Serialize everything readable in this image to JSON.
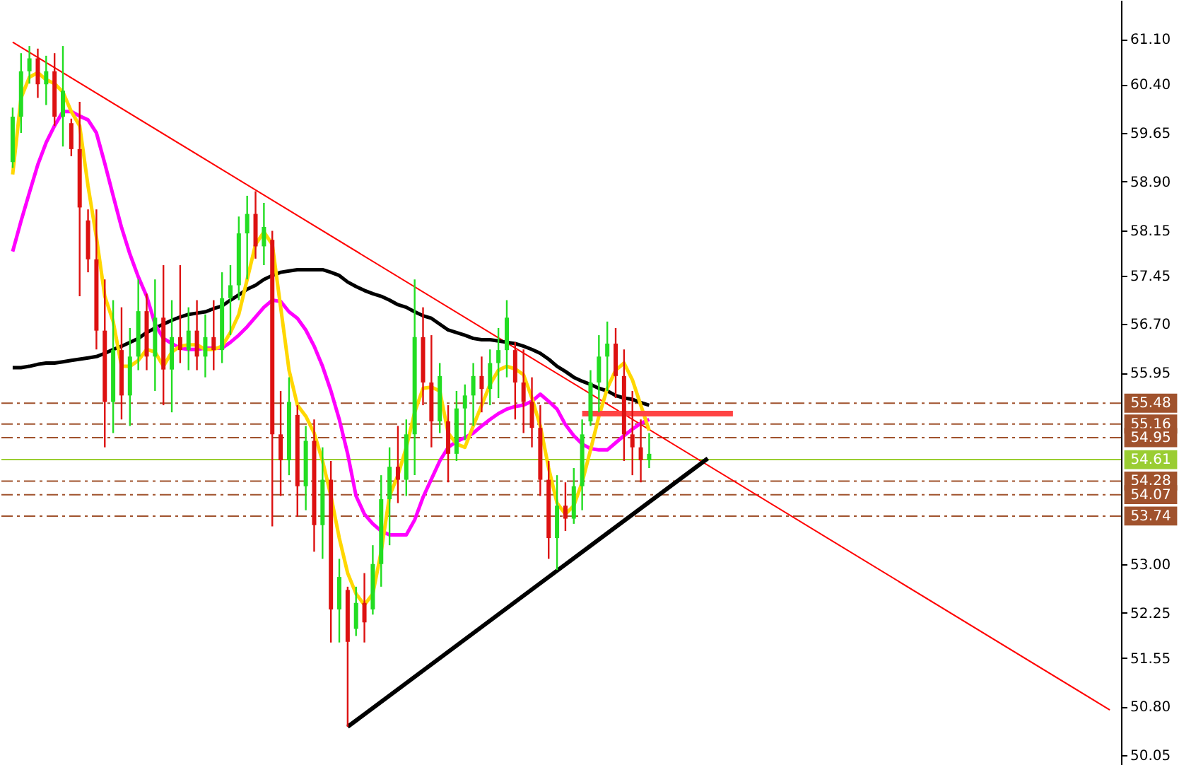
{
  "chart_data": {
    "type": "candlestick",
    "categories": [
      null,
      null,
      null,
      null,
      null,
      null,
      null,
      null,
      null,
      null,
      null,
      null,
      null,
      null,
      null,
      null,
      null,
      null,
      null,
      null,
      null,
      null,
      null,
      null,
      null,
      null,
      null,
      null,
      null,
      null,
      null,
      null,
      null,
      null,
      null,
      null,
      null,
      null,
      null,
      null,
      null,
      null,
      null,
      null,
      null,
      null,
      null,
      null,
      null,
      null,
      null,
      null,
      null,
      null,
      null,
      null,
      null,
      null,
      null,
      null,
      null,
      null,
      null,
      null,
      null,
      null,
      null,
      null,
      null,
      null,
      null,
      null,
      null,
      null,
      null,
      null,
      null,
      null,
      null,
      null,
      null,
      null,
      null,
      null,
      null,
      null,
      null,
      null,
      null,
      null,
      null,
      null,
      null,
      null,
      null,
      null,
      null,
      null,
      null,
      null,
      null,
      null,
      null,
      null,
      null,
      null,
      null,
      null,
      null,
      null,
      null,
      null,
      null,
      null,
      null,
      null,
      null,
      null,
      null,
      null,
      null,
      null,
      null,
      null,
      null,
      null,
      null,
      null,
      null,
      null,
      null,
      null
    ],
    "ohlc": [
      [
        59.2,
        60.04,
        59.11,
        59.9
      ],
      [
        59.9,
        60.88,
        59.65,
        60.6
      ],
      [
        60.6,
        60.99,
        60.41,
        60.8
      ],
      [
        60.8,
        60.95,
        60.19,
        60.4
      ],
      [
        60.4,
        60.84,
        60.08,
        60.6
      ],
      [
        60.6,
        60.88,
        59.76,
        59.9
      ],
      [
        59.9,
        60.99,
        59.44,
        60.3
      ],
      [
        59.8,
        59.87,
        59.29,
        59.4
      ],
      [
        59.4,
        60.13,
        57.13,
        58.5
      ],
      [
        58.3,
        58.47,
        57.5,
        57.7
      ],
      [
        57.7,
        58.47,
        56.31,
        56.6
      ],
      [
        56.6,
        57.39,
        54.8,
        55.5
      ],
      [
        55.5,
        57.07,
        55.02,
        56.3
      ],
      [
        56.3,
        56.96,
        55.23,
        55.6
      ],
      [
        55.6,
        56.64,
        55.13,
        56.2
      ],
      [
        56.2,
        57.39,
        55.99,
        56.9
      ],
      [
        56.9,
        57.17,
        55.99,
        56.2
      ],
      [
        56.2,
        57.39,
        55.67,
        56.8
      ],
      [
        56.8,
        57.61,
        55.45,
        56.0
      ],
      [
        56.0,
        57.07,
        55.34,
        56.5
      ],
      [
        56.5,
        57.61,
        56.1,
        56.3
      ],
      [
        56.3,
        56.96,
        55.99,
        56.6
      ],
      [
        56.6,
        57.07,
        55.99,
        56.2
      ],
      [
        56.2,
        56.85,
        55.88,
        56.5
      ],
      [
        56.5,
        57.07,
        55.99,
        56.3
      ],
      [
        56.3,
        57.5,
        56.1,
        57.1
      ],
      [
        57.1,
        57.61,
        56.53,
        57.3
      ],
      [
        57.3,
        58.36,
        57.07,
        58.1
      ],
      [
        58.1,
        58.68,
        57.39,
        58.4
      ],
      [
        58.4,
        58.75,
        57.71,
        57.9
      ],
      [
        57.9,
        58.57,
        57.61,
        58.2
      ],
      [
        58.0,
        58.14,
        53.58,
        55.0
      ],
      [
        55.0,
        55.67,
        54.05,
        54.6
      ],
      [
        54.6,
        55.88,
        54.37,
        55.5
      ],
      [
        55.3,
        55.45,
        53.73,
        54.2
      ],
      [
        54.2,
        55.13,
        53.83,
        54.9
      ],
      [
        54.9,
        55.23,
        53.19,
        53.6
      ],
      [
        53.6,
        54.8,
        53.08,
        54.3
      ],
      [
        54.3,
        54.59,
        51.79,
        52.3
      ],
      [
        52.3,
        53.08,
        51.79,
        52.8
      ],
      [
        52.6,
        52.65,
        50.49,
        51.8
      ],
      [
        52.0,
        52.65,
        51.89,
        52.4
      ],
      [
        52.4,
        52.86,
        51.79,
        52.1
      ],
      [
        52.3,
        53.29,
        52.22,
        53.0
      ],
      [
        53.0,
        54.37,
        52.65,
        54.0
      ],
      [
        54.0,
        54.8,
        53.29,
        54.5
      ],
      [
        54.5,
        55.13,
        53.94,
        54.3
      ],
      [
        54.3,
        55.23,
        54.05,
        55.0
      ],
      [
        55.0,
        57.39,
        54.37,
        56.5
      ],
      [
        56.5,
        56.96,
        55.45,
        55.8
      ],
      [
        55.8,
        56.53,
        54.8,
        55.2
      ],
      [
        55.2,
        56.1,
        55.02,
        55.9
      ],
      [
        55.2,
        55.45,
        54.26,
        54.7
      ],
      [
        54.7,
        55.67,
        54.59,
        55.4
      ],
      [
        55.4,
        55.77,
        54.91,
        55.6
      ],
      [
        55.6,
        56.1,
        55.13,
        55.9
      ],
      [
        55.9,
        56.2,
        55.34,
        55.7
      ],
      [
        55.7,
        56.31,
        55.45,
        56.1
      ],
      [
        56.1,
        56.64,
        55.56,
        56.3
      ],
      [
        56.3,
        57.07,
        55.88,
        56.8
      ],
      [
        56.3,
        56.42,
        55.23,
        55.8
      ],
      [
        55.8,
        56.31,
        55.02,
        55.5
      ],
      [
        55.5,
        55.88,
        54.8,
        55.1
      ],
      [
        55.1,
        55.45,
        54.05,
        54.3
      ],
      [
        54.3,
        54.59,
        53.08,
        53.4
      ],
      [
        53.4,
        54.37,
        52.91,
        53.9
      ],
      [
        53.9,
        54.26,
        53.51,
        53.7
      ],
      [
        53.7,
        54.48,
        53.62,
        54.2
      ],
      [
        54.2,
        55.23,
        53.83,
        55.0
      ],
      [
        55.2,
        55.99,
        55.13,
        55.8
      ],
      [
        55.8,
        56.53,
        55.34,
        56.2
      ],
      [
        56.2,
        56.74,
        55.67,
        56.4
      ],
      [
        56.4,
        56.64,
        55.56,
        55.9
      ],
      [
        55.9,
        56.31,
        54.59,
        55.0
      ],
      [
        55.0,
        55.67,
        54.37,
        54.8
      ],
      [
        54.8,
        55.23,
        54.26,
        54.6
      ],
      [
        54.6,
        55.02,
        54.48,
        54.7
      ],
      null,
      null,
      null,
      null,
      null,
      null,
      null,
      null,
      null,
      null,
      null,
      null,
      null,
      null,
      null,
      null,
      null,
      null,
      null,
      null,
      null,
      null,
      null,
      null,
      null,
      null,
      null,
      null,
      null,
      null,
      null,
      null,
      null,
      null,
      null,
      null,
      null,
      null,
      null,
      null,
      null,
      null,
      null,
      null,
      null,
      null,
      null,
      null,
      null,
      null,
      null,
      null,
      null,
      null,
      null
    ],
    "colors": [
      "#22dd22",
      "#22dd22",
      "#22dd22",
      "#dd1111",
      "#22dd22",
      "#dd1111",
      "#22dd22",
      "#dd1111",
      "#dd1111",
      "#dd1111",
      "#dd1111",
      "#dd1111",
      "#22dd22",
      "#dd1111",
      "#22dd22",
      "#22dd22",
      "#dd1111",
      "#22dd22",
      "#dd1111",
      "#22dd22",
      "#dd1111",
      "#22dd22",
      "#dd1111",
      "#22dd22",
      "#dd1111",
      "#22dd22",
      "#22dd22",
      "#22dd22",
      "#22dd22",
      "#dd1111",
      "#22dd22",
      "#dd1111",
      "#dd1111",
      "#22dd22",
      "#dd1111",
      "#22dd22",
      "#dd1111",
      "#22dd22",
      "#dd1111",
      "#22dd22",
      "#dd1111",
      "#22dd22",
      "#dd1111",
      "#22dd22",
      "#22dd22",
      "#22dd22",
      "#dd1111",
      "#22dd22",
      "#22dd22",
      "#dd1111",
      "#dd1111",
      "#22dd22",
      "#dd1111",
      "#22dd22",
      "#22dd22",
      "#22dd22",
      "#dd1111",
      "#22dd22",
      "#22dd22",
      "#22dd22",
      "#dd1111",
      "#dd1111",
      "#dd1111",
      "#dd1111",
      "#dd1111",
      "#22dd22",
      "#dd1111",
      "#22dd22",
      "#22dd22",
      "#22dd22",
      "#22dd22",
      "#22dd22",
      "#dd1111",
      "#dd1111",
      "#dd1111",
      "#dd1111",
      "#22dd22",
      null,
      null,
      null,
      null,
      null,
      null,
      null,
      null,
      null,
      null,
      null,
      null,
      null,
      null,
      null,
      null,
      null,
      null,
      null,
      null,
      null,
      null,
      null,
      null,
      null,
      null,
      null,
      null,
      null,
      null,
      null,
      null,
      null,
      null,
      null,
      null,
      null,
      null,
      null,
      null,
      null,
      null,
      null,
      null,
      null,
      null,
      null,
      null,
      null,
      null,
      null,
      null,
      null,
      null,
      null
    ],
    "series": [
      {
        "type": "line",
        "color": "#ff0000",
        "values": [
          61.05,
          null,
          null,
          null,
          null,
          null,
          null,
          null,
          null,
          null,
          null,
          null,
          null,
          null,
          null,
          null,
          null,
          null,
          null,
          null,
          null,
          null,
          null,
          null,
          null,
          null,
          null,
          null,
          null,
          null,
          null,
          null,
          null,
          null,
          null,
          null,
          null,
          null,
          null,
          null,
          null,
          null,
          null,
          null,
          null,
          null,
          null,
          null,
          null,
          null,
          null,
          null,
          null,
          null,
          null,
          null,
          null,
          null,
          null,
          null,
          null,
          null,
          null,
          null,
          null,
          null,
          null,
          null,
          null,
          null,
          null,
          null,
          null,
          null,
          null,
          null,
          null,
          null,
          null,
          null,
          null,
          null,
          null,
          null,
          null,
          null,
          null,
          null,
          null,
          null,
          null,
          null,
          null,
          null,
          null,
          null,
          null,
          null,
          null,
          null,
          null,
          null,
          null,
          null,
          null,
          null,
          null,
          null,
          null,
          null,
          null,
          null,
          null,
          null,
          null,
          null,
          null,
          null,
          null,
          null,
          null,
          null,
          null,
          null,
          null,
          null,
          null,
          null,
          null,
          null,
          null,
          50.75
        ]
      },
      {
        "type": "line",
        "color": "#000000",
        "values": [
          56.03,
          56.03,
          56.05,
          56.08,
          56.1,
          56.1,
          56.12,
          56.14,
          56.16,
          56.18,
          56.2,
          56.25,
          56.31,
          56.36,
          56.42,
          56.48,
          56.57,
          56.64,
          56.7,
          56.76,
          56.81,
          56.85,
          56.87,
          56.89,
          56.94,
          56.98,
          57.07,
          57.15,
          57.24,
          57.3,
          57.39,
          57.45,
          57.5,
          57.52,
          57.54,
          57.54,
          57.54,
          57.54,
          57.5,
          57.45,
          57.35,
          57.28,
          57.22,
          57.17,
          57.13,
          57.07,
          57.0,
          56.96,
          56.89,
          56.83,
          56.79,
          56.7,
          56.61,
          56.57,
          56.53,
          56.48,
          56.46,
          56.46,
          56.44,
          56.42,
          56.4,
          56.36,
          56.31,
          56.25,
          56.16,
          56.05,
          55.97,
          55.88,
          55.82,
          55.77,
          55.71,
          55.67,
          55.6,
          55.56,
          55.54,
          55.49,
          55.45,
          null,
          null,
          null,
          null,
          null,
          null,
          null,
          null,
          null,
          null,
          null,
          null,
          null,
          null,
          null,
          null,
          null,
          null,
          null,
          null,
          null,
          null,
          null,
          null,
          null,
          null,
          null,
          null,
          null,
          null,
          null,
          null,
          null,
          null,
          null,
          null,
          null,
          null,
          null,
          null,
          null,
          null,
          null,
          null,
          null,
          null,
          null,
          null,
          null,
          null,
          null,
          null,
          null,
          null,
          null
        ]
      },
      {
        "type": "line",
        "color": "#ff00ff",
        "values": [
          57.82,
          58.29,
          58.73,
          59.16,
          59.5,
          59.76,
          59.98,
          59.98,
          59.91,
          59.85,
          59.65,
          59.18,
          58.68,
          58.19,
          57.78,
          57.43,
          57.13,
          56.7,
          56.48,
          56.4,
          56.33,
          56.31,
          56.31,
          56.33,
          56.33,
          56.33,
          56.42,
          56.53,
          56.66,
          56.81,
          56.96,
          57.07,
          57.05,
          56.89,
          56.79,
          56.61,
          56.36,
          56.05,
          55.67,
          55.23,
          54.7,
          54.05,
          53.77,
          53.62,
          53.51,
          53.45,
          53.45,
          53.45,
          53.68,
          54.03,
          54.31,
          54.59,
          54.8,
          54.89,
          54.95,
          55.02,
          55.13,
          55.23,
          55.32,
          55.39,
          55.43,
          55.45,
          55.51,
          55.62,
          55.51,
          55.39,
          55.15,
          54.98,
          54.85,
          54.78,
          54.76,
          54.76,
          54.87,
          54.98,
          55.08,
          55.17,
          55.23,
          null,
          null,
          null,
          null,
          null,
          null,
          null,
          null,
          null,
          null,
          null,
          null,
          null,
          null,
          null,
          null,
          null,
          null,
          null,
          null,
          null,
          null,
          null,
          null,
          null,
          null,
          null,
          null,
          null,
          null,
          null,
          null,
          null,
          null,
          null,
          null,
          null,
          null,
          null,
          null,
          null,
          null,
          null,
          null,
          null,
          null,
          null,
          null,
          null,
          null,
          null,
          null,
          null,
          null,
          null
        ]
      },
      {
        "type": "line",
        "color": "#ffd700",
        "values": [
          59.01,
          60.19,
          60.51,
          60.58,
          60.47,
          60.41,
          60.28,
          59.98,
          59.76,
          58.83,
          58.04,
          57.13,
          56.74,
          56.05,
          56.05,
          56.14,
          56.31,
          56.27,
          56.05,
          56.27,
          56.36,
          56.38,
          56.38,
          56.31,
          56.31,
          56.36,
          56.57,
          56.85,
          57.39,
          57.93,
          58.12,
          57.93,
          56.96,
          55.99,
          55.45,
          55.28,
          55.02,
          54.59,
          54.05,
          53.4,
          52.86,
          52.54,
          52.37,
          52.54,
          53.19,
          54.05,
          54.37,
          54.8,
          55.34,
          55.71,
          55.73,
          55.67,
          55.02,
          54.85,
          54.8,
          55.13,
          55.45,
          55.77,
          55.99,
          56.05,
          56.01,
          55.92,
          55.56,
          55.13,
          54.48,
          53.94,
          53.77,
          53.9,
          54.26,
          54.76,
          55.28,
          55.71,
          55.99,
          56.1,
          55.84,
          55.45,
          55.06,
          null,
          null,
          null,
          null,
          null,
          null,
          null,
          null,
          null,
          null,
          null,
          null,
          null,
          null,
          null,
          null,
          null,
          null,
          null,
          null,
          null,
          null,
          null,
          null,
          null,
          null,
          null,
          null,
          null,
          null,
          null,
          null,
          null,
          null,
          null,
          null,
          null,
          null,
          null,
          null,
          null,
          null,
          null,
          null,
          null,
          null,
          null,
          null,
          null,
          null,
          null,
          null,
          null,
          null,
          null
        ]
      },
      {
        "type": "line",
        "color": "#000000",
        "values": [
          null,
          null,
          null,
          null,
          null,
          null,
          null,
          null,
          null,
          null,
          null,
          null,
          null,
          null,
          null,
          null,
          null,
          null,
          null,
          null,
          null,
          null,
          null,
          null,
          null,
          null,
          null,
          null,
          null,
          null,
          null,
          null,
          null,
          null,
          null,
          null,
          null,
          null,
          null,
          null,
          50.49,
          null,
          null,
          null,
          null,
          null,
          null,
          null,
          null,
          null,
          null,
          null,
          null,
          null,
          null,
          null,
          null,
          null,
          null,
          null,
          null,
          null,
          null,
          null,
          null,
          null,
          null,
          null,
          null,
          null,
          null,
          null,
          null,
          null,
          null,
          null,
          null,
          null,
          null,
          null,
          null,
          null,
          null,
          54.63,
          null,
          null,
          null,
          null,
          null,
          null,
          null,
          null,
          null,
          null,
          null,
          null,
          null,
          null,
          null,
          null,
          null,
          null,
          null,
          null,
          null,
          null,
          null,
          null,
          null,
          null,
          null,
          null,
          null,
          null,
          null,
          null,
          null,
          null,
          null,
          null,
          null,
          null,
          null,
          null,
          null,
          null,
          null,
          null,
          null,
          null,
          null,
          null
        ]
      },
      {
        "type": "line",
        "color": "#ff4444",
        "values": [
          null,
          null,
          null,
          null,
          null,
          null,
          null,
          null,
          null,
          null,
          null,
          null,
          null,
          null,
          null,
          null,
          null,
          null,
          null,
          null,
          null,
          null,
          null,
          null,
          null,
          null,
          null,
          null,
          null,
          null,
          null,
          null,
          null,
          null,
          null,
          null,
          null,
          null,
          null,
          null,
          null,
          null,
          null,
          null,
          null,
          null,
          null,
          null,
          null,
          null,
          null,
          null,
          null,
          null,
          null,
          null,
          null,
          null,
          null,
          null,
          null,
          null,
          null,
          null,
          null,
          null,
          null,
          null,
          55.32,
          null,
          null,
          null,
          null,
          null,
          null,
          null,
          null,
          null,
          null,
          null,
          null,
          null,
          null,
          null,
          null,
          null,
          55.32,
          null,
          null,
          null,
          null,
          null,
          null,
          null,
          null,
          null,
          null,
          null,
          null,
          null,
          null,
          null,
          null,
          null,
          null,
          null,
          null,
          null,
          null,
          null,
          null,
          null,
          null,
          null,
          null,
          null,
          null,
          null,
          null,
          null,
          null,
          null,
          null,
          null,
          null,
          null,
          null,
          null,
          null,
          null,
          null,
          null
        ]
      }
    ],
    "ylim": [
      49.9,
      61.7
    ],
    "yticks": [
      50.05,
      {
        "value": 50.8,
        "label": "50.80"
      },
      51.55,
      52.25,
      {
        "value": 53,
        "label": "53.00"
      },
      55.95,
      {
        "value": 56.7,
        "label": "56.70"
      },
      57.45,
      58.15,
      {
        "value": 58.9,
        "label": "58.90"
      },
      59.65,
      {
        "value": 60.4,
        "label": "60.40"
      },
      {
        "value": 61.1,
        "label": "61.10"
      }
    ],
    "ref_lines": [
      {
        "axis": "y",
        "value": 55.48,
        "label": "55.48",
        "color": "#a0522d",
        "line_style": "dashdot"
      },
      {
        "axis": "y",
        "value": 55.16,
        "label": "55.16",
        "color": "#a0522d",
        "line_style": "dashdot"
      },
      {
        "axis": "y",
        "value": 54.95,
        "label": "54.95",
        "color": "#a0522d",
        "line_style": "dashdot"
      },
      {
        "axis": "y",
        "value": 54.61,
        "label": "54.61",
        "color": "#9acd32",
        "line_style": "solid"
      },
      {
        "axis": "y",
        "value": 54.28,
        "label": "54.28",
        "color": "#a0522d",
        "line_style": "dashdot"
      },
      {
        "axis": "y",
        "value": 54.07,
        "label": "54.07",
        "color": "#a0522d",
        "line_style": "dashdot"
      },
      {
        "axis": "y",
        "value": 53.74,
        "label": "53.74",
        "color": "#a0522d",
        "line_style": "dashdot"
      }
    ],
    "tick_labels": "y",
    "grid": false,
    "marker": "none"
  }
}
